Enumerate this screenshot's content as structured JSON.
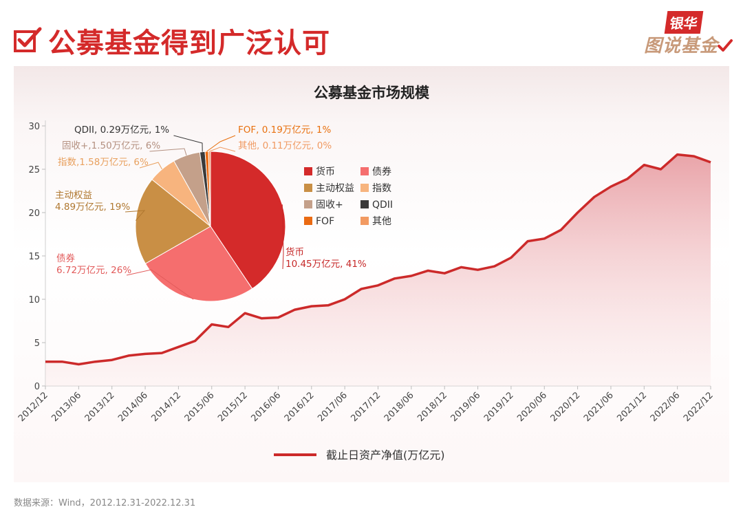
{
  "header": {
    "title": "公募基金得到广泛认可",
    "logo_top": "银华",
    "logo_bottom": "图说基金"
  },
  "source": "数据来源：Wind，2012.12.31-2022.12.31",
  "colors": {
    "brand": "#d42a2a",
    "line": "#cc2a2a",
    "area": "#e8a0a4"
  },
  "chart_data": [
    {
      "type": "area",
      "title": "公募基金市场规模",
      "xlabel": "",
      "ylabel": "",
      "ylim": [
        0,
        30
      ],
      "yticks": [
        0,
        5,
        10,
        15,
        20,
        25,
        30
      ],
      "grid": false,
      "legend_position": "bottom",
      "categories": [
        "2012/12",
        "2013/03",
        "2013/06",
        "2013/09",
        "2013/12",
        "2014/03",
        "2014/06",
        "2014/09",
        "2014/12",
        "2015/03",
        "2015/06",
        "2015/09",
        "2015/12",
        "2016/03",
        "2016/06",
        "2016/09",
        "2016/12",
        "2017/03",
        "2017/06",
        "2017/09",
        "2017/12",
        "2018/03",
        "2018/06",
        "2018/09",
        "2018/12",
        "2019/03",
        "2019/06",
        "2019/09",
        "2019/12",
        "2020/03",
        "2020/06",
        "2020/09",
        "2020/12",
        "2021/03",
        "2021/06",
        "2021/09",
        "2021/12",
        "2022/03",
        "2022/06",
        "2022/09",
        "2022/12"
      ],
      "tick_labels": [
        "2012/12",
        "2013/06",
        "2013/12",
        "2014/06",
        "2014/12",
        "2015/06",
        "2015/12",
        "2016/06",
        "2016/12",
        "2017/06",
        "2017/12",
        "2018/06",
        "2018/12",
        "2019/06",
        "2019/12",
        "2020/06",
        "2020/12",
        "2021/06",
        "2021/12",
        "2022/06",
        "2022/12"
      ],
      "series": [
        {
          "name": "截止日资产净值(万亿元)",
          "values": [
            2.8,
            2.8,
            2.5,
            2.8,
            3.0,
            3.5,
            3.7,
            3.8,
            4.5,
            5.2,
            7.1,
            6.8,
            8.4,
            7.8,
            7.9,
            8.8,
            9.2,
            9.3,
            10.0,
            11.2,
            11.6,
            12.4,
            12.7,
            13.3,
            13.0,
            13.7,
            13.4,
            13.8,
            14.8,
            16.7,
            17.0,
            18.0,
            20.0,
            21.8,
            23.0,
            23.9,
            25.5,
            25.0,
            26.7,
            26.5,
            25.8
          ]
        }
      ]
    },
    {
      "type": "pie",
      "legend_position": "right",
      "slices": [
        {
          "name": "货币",
          "value": 10.45,
          "percent": 41,
          "color": "#d42a2a",
          "label_line1": "货币",
          "label_line2": "10.45万亿元, 41%"
        },
        {
          "name": "债券",
          "value": 6.72,
          "percent": 26,
          "color": "#f56e6e",
          "label_line1": "债券",
          "label_line2": "6.72万亿元, 26%"
        },
        {
          "name": "主动权益",
          "value": 4.89,
          "percent": 19,
          "color": "#c98f45",
          "label_line1": "主动权益",
          "label_line2": "4.89万亿元, 19%"
        },
        {
          "name": "指数",
          "value": 1.58,
          "percent": 6,
          "color": "#f7b47e",
          "label_line1": "指数,1.58万亿元, 6%",
          "label_line2": ""
        },
        {
          "name": "固收+",
          "value": 1.5,
          "percent": 6,
          "color": "#c4a08a",
          "label_line1": "固收+,1.50万亿元, 6%",
          "label_line2": ""
        },
        {
          "name": "QDII",
          "value": 0.29,
          "percent": 1,
          "color": "#3a3a3a",
          "label_line1": "QDII, 0.29万亿元, 1%",
          "label_line2": ""
        },
        {
          "name": "FOF",
          "value": 0.19,
          "percent": 1,
          "color": "#ea6a12",
          "label_line1": "FOF, 0.19万亿元, 1%",
          "label_line2": ""
        },
        {
          "name": "其他",
          "value": 0.11,
          "percent": 0,
          "color": "#f29a62",
          "label_line1": "其他, 0.11万亿元, 0%",
          "label_line2": ""
        }
      ]
    }
  ]
}
